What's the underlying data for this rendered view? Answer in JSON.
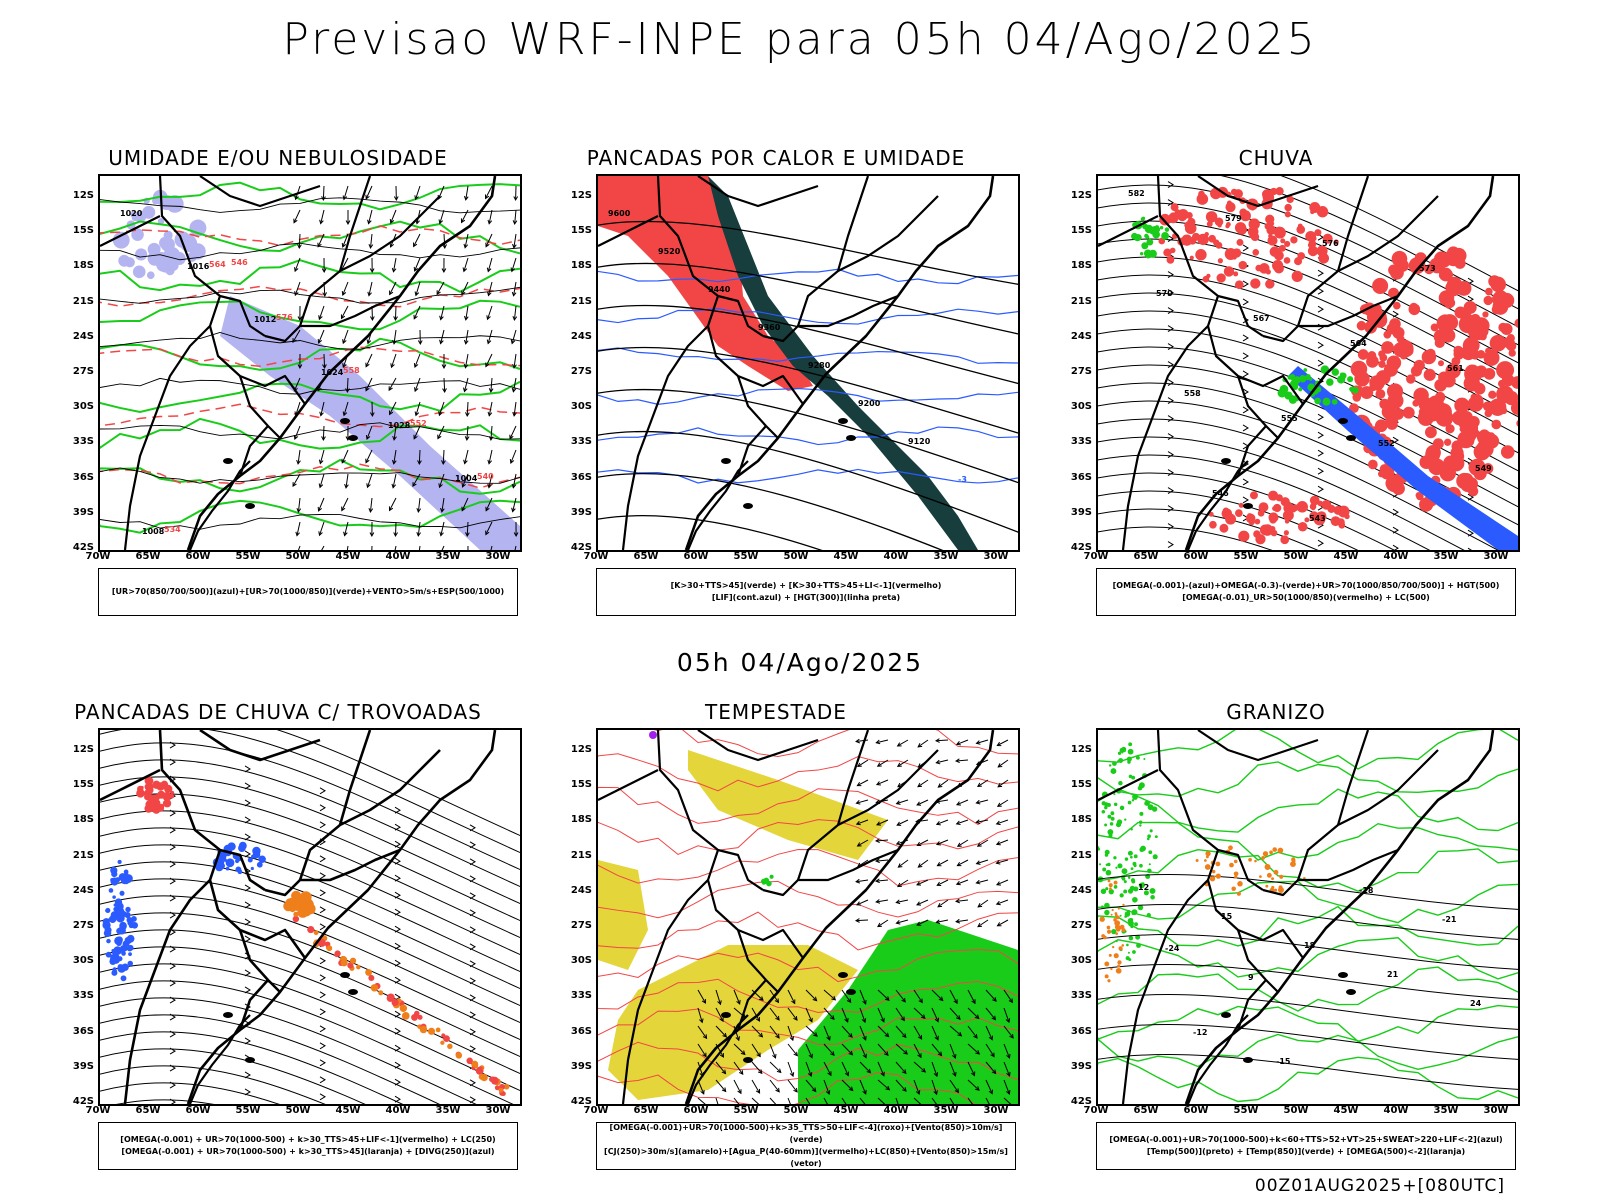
{
  "main_title": "Previsao WRF-INPE  para 05h 04/Ago/2025",
  "middle_title": "05h 04/Ago/2025",
  "footer_stamp": "00Z01AUG2025+[080UTC]",
  "lat_labels": [
    "12S",
    "15S",
    "18S",
    "21S",
    "24S",
    "27S",
    "30S",
    "33S",
    "36S",
    "39S",
    "42S"
  ],
  "lon_labels": [
    "70W",
    "65W",
    "60W",
    "55W",
    "50W",
    "45W",
    "40W",
    "35W",
    "30W"
  ],
  "colors": {
    "red": "#f24646",
    "green": "#19cc19",
    "blue": "#2b5bff",
    "lavender": "#b4b4f0",
    "dark_teal": "#173d3d",
    "yellow": "#e3d53a",
    "orange": "#ef7f1a",
    "purple": "#a020f0"
  },
  "panels": [
    {
      "title": "UMIDADE E/OU NEBULOSIDADE",
      "legend": [
        "[UR>70(850/700/500)](azul)+[UR>70(1000/850)](verde)+VENTO>5m/s+ESP(500/1000)"
      ],
      "contour_labels": [
        "1020",
        "1016",
        "1012",
        "1024",
        "1028",
        "1004",
        "1008",
        "564",
        "576",
        "558",
        "552",
        "540",
        "534",
        "546"
      ]
    },
    {
      "title": "PANCADAS POR CALOR E UMIDADE",
      "legend": [
        "[K>30+TTS>45](verde) + [K>30+TTS>45+LI<-1](vermelho)",
        "[LIF](cont.azul) + [HGT(300)](linha preta)"
      ],
      "contour_labels": [
        "9600",
        "9520",
        "9440",
        "9360",
        "9280",
        "9200",
        "9120",
        "-3"
      ]
    },
    {
      "title": "CHUVA",
      "legend": [
        "[OMEGA(-0.001)-(azul)+OMEGA(-0.3)-(verde)+UR>70(1000/850/700/500)] + HGT(500)",
        "[OMEGA(-0.01)_UR>50(1000/850)(vermelho) + LC(500)"
      ],
      "contour_labels": [
        "582",
        "579",
        "576",
        "573",
        "570",
        "567",
        "564",
        "561",
        "558",
        "555",
        "552",
        "549",
        "546",
        "543"
      ]
    },
    {
      "title": "PANCADAS DE CHUVA C/ TROVOADAS",
      "legend": [
        "[OMEGA(-0.001) + UR>70(1000-500) + k>30_TTS>45+LIF<-1](vermelho) + LC(250)",
        "[OMEGA(-0.001) + UR>70(1000-500) + k>30_TTS>45](laranja) + [DIVG(250)](azul)"
      ],
      "contour_labels": []
    },
    {
      "title": "TEMPESTADE",
      "legend": [
        "[OMEGA(-0.001)+UR>70(1000-500)+k>35_TTS>50+LIF<-4](roxo)+[Vento(850)>10m/s](verde)",
        "[CJ(250)>30m/s](amarelo)+[Agua_P(40-60mm)](vermelho)+LC(850)+[Vento(850)>15m/s](vetor)"
      ],
      "contour_labels": []
    },
    {
      "title": "GRANIZO",
      "legend": [
        "[OMEGA(-0.001)+UR>70(1000-500)+k<60+TTS>52+VT>25+SWEAT>220+LIF<-2](azul)",
        "[Temp(500)](preto) + [Temp(850)](verde) + [OMEGA(500)<-2](laranja)"
      ],
      "contour_labels": [
        "12",
        "15",
        "18",
        "21",
        "24",
        "-12",
        "-15",
        "-18",
        "-21",
        "-24",
        "9"
      ]
    }
  ]
}
